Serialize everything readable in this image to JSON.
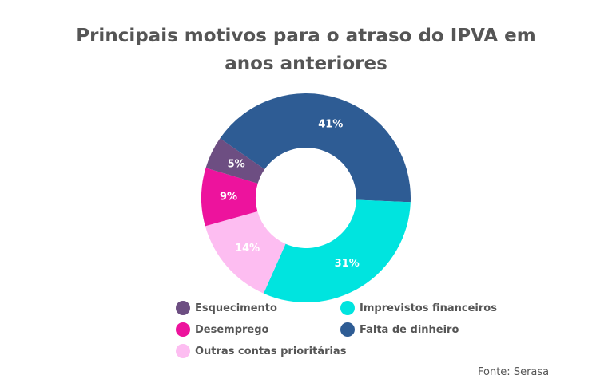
{
  "chart_data": {
    "type": "pie",
    "title_lines": [
      "Principais motivos para o atraso do IPVA em",
      "anos anteriores"
    ],
    "slices": [
      {
        "name": "Falta de dinheiro",
        "value": 41,
        "label": "41%",
        "color": "#2e5c94"
      },
      {
        "name": "Imprevistos financeiros",
        "value": 31,
        "label": "31%",
        "color": "#00e4df"
      },
      {
        "name": "Outras contas prioritárias",
        "value": 14,
        "label": "14%",
        "color": "#fdbdf1"
      },
      {
        "name": "Desemprego",
        "value": 9,
        "label": "9%",
        "color": "#ed139d"
      },
      {
        "name": "Esquecimento",
        "value": 5,
        "label": "5%",
        "color": "#6d4e82"
      }
    ],
    "legend_order": [
      "Esquecimento",
      "Imprevistos financeiros",
      "Desemprego",
      "Falta de dinheiro",
      "Outras contas prioritárias"
    ],
    "legend_placement": "bottom",
    "source": "Fonte: Serasa"
  }
}
